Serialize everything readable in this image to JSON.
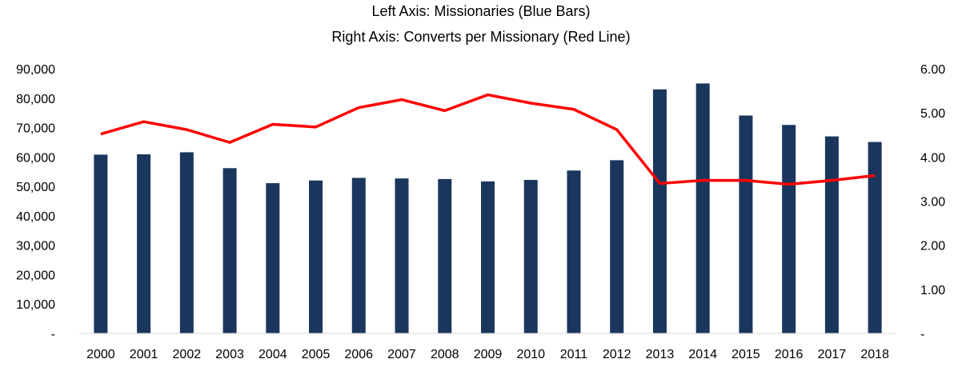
{
  "chart_data": {
    "type": "bar",
    "title": "Left Axis: Missionaries (Blue Bars)",
    "subtitle": "Right Axis: Converts per Missionary (Red Line)",
    "categories": [
      "2000",
      "2001",
      "2002",
      "2003",
      "2004",
      "2005",
      "2006",
      "2007",
      "2008",
      "2009",
      "2010",
      "2011",
      "2012",
      "2013",
      "2014",
      "2015",
      "2016",
      "2017",
      "2018"
    ],
    "series": [
      {
        "type": "bar",
        "axis": "left",
        "color": "#1b365d",
        "values": [
          60800,
          60900,
          61600,
          56200,
          51100,
          52000,
          52900,
          52700,
          52500,
          51700,
          52200,
          55400,
          58900,
          83000,
          85000,
          74100,
          70900,
          67000,
          65100
        ]
      },
      {
        "type": "line",
        "axis": "right",
        "color": "#ff0000",
        "values": [
          4.52,
          4.8,
          4.62,
          4.33,
          4.74,
          4.68,
          5.12,
          5.3,
          5.05,
          5.41,
          5.22,
          5.08,
          4.62,
          3.4,
          3.47,
          3.47,
          3.38,
          3.47,
          3.58
        ]
      }
    ],
    "left_axis": {
      "ylim": [
        0,
        90000
      ],
      "ticks": [
        "-",
        "10,000",
        "20,000",
        "30,000",
        "40,000",
        "50,000",
        "60,000",
        "70,000",
        "80,000",
        "90,000"
      ]
    },
    "right_axis": {
      "ylim": [
        0,
        6
      ],
      "ticks": [
        "-",
        "1.00",
        "2.00",
        "3.00",
        "4.00",
        "5.00",
        "6.00"
      ]
    },
    "grid": false
  }
}
